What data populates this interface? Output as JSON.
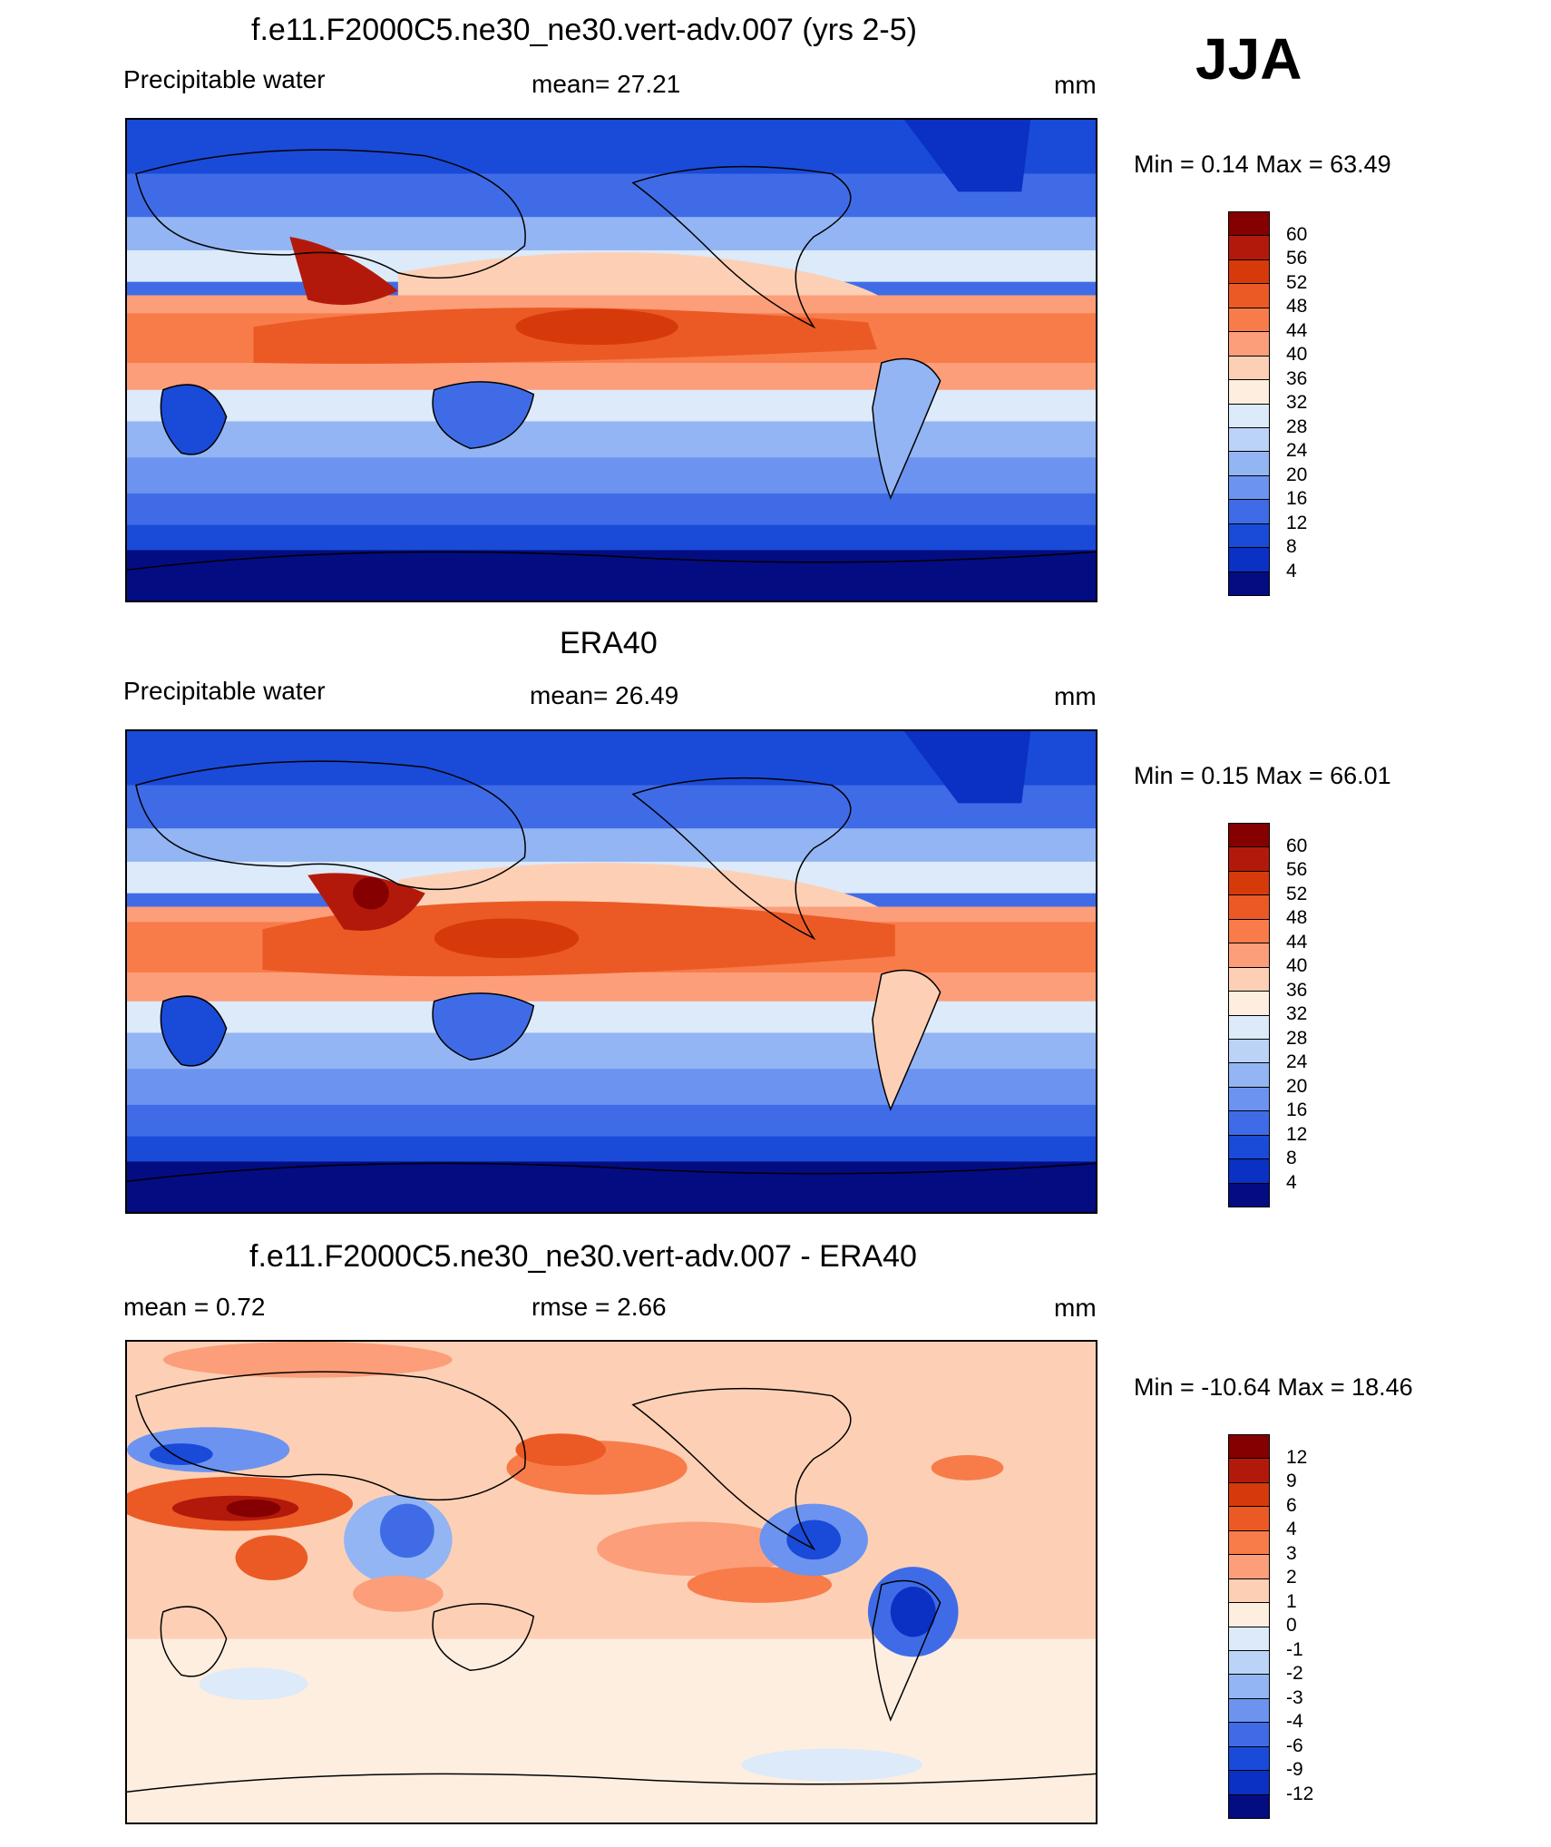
{
  "season": "JJA",
  "units": "mm",
  "panels": [
    {
      "title": "f.e11.F2000C5.ne30_ne30.vert-adv.007 (yrs 2-5)",
      "left_label": "Precipitable water",
      "stat_label": "mean=  27.21",
      "units": "mm",
      "minmax": "Min =   0.14 Max =  63.49",
      "levels": [
        "60",
        "56",
        "52",
        "48",
        "44",
        "40",
        "36",
        "32",
        "28",
        "24",
        "20",
        "16",
        "12",
        "8",
        "4"
      ],
      "colors": [
        "#850000",
        "#b3190a",
        "#d63a0a",
        "#eb5a25",
        "#f77c4a",
        "#fc9e7a",
        "#fdd0b5",
        "#fdeee0",
        "#dceaf9",
        "#bbd3f6",
        "#93b5f3",
        "#6c93f0",
        "#3f6ce6",
        "#1a4ad8",
        "#0b30c4",
        "#040c82"
      ],
      "map_style": "precip_model"
    },
    {
      "title": "ERA40",
      "left_label": "Precipitable water",
      "stat_label": "mean=  26.49",
      "units": "mm",
      "minmax": "Min =   0.15 Max =  66.01",
      "levels": [
        "60",
        "56",
        "52",
        "48",
        "44",
        "40",
        "36",
        "32",
        "28",
        "24",
        "20",
        "16",
        "12",
        "8",
        "4"
      ],
      "colors": [
        "#850000",
        "#b3190a",
        "#d63a0a",
        "#eb5a25",
        "#f77c4a",
        "#fc9e7a",
        "#fdd0b5",
        "#fdeee0",
        "#dceaf9",
        "#bbd3f6",
        "#93b5f3",
        "#6c93f0",
        "#3f6ce6",
        "#1a4ad8",
        "#0b30c4",
        "#040c82"
      ],
      "map_style": "precip_obs"
    },
    {
      "title": "f.e11.F2000C5.ne30_ne30.vert-adv.007 - ERA40",
      "left_label": "mean =   0.72",
      "stat_label": "rmse =   2.66",
      "units": "mm",
      "minmax": "Min = -10.64 Max =  18.46",
      "levels": [
        "12",
        "9",
        "6",
        "4",
        "3",
        "2",
        "1",
        "0",
        "-1",
        "-2",
        "-3",
        "-4",
        "-6",
        "-9",
        "-12"
      ],
      "colors": [
        "#850000",
        "#b3190a",
        "#d63a0a",
        "#eb5a25",
        "#f77c4a",
        "#fc9e7a",
        "#fdd0b5",
        "#fdeee0",
        "#dceaf9",
        "#bbd3f6",
        "#93b5f3",
        "#6c93f0",
        "#3f6ce6",
        "#1a4ad8",
        "#0b30c4",
        "#040c82"
      ],
      "map_style": "difference"
    }
  ]
}
